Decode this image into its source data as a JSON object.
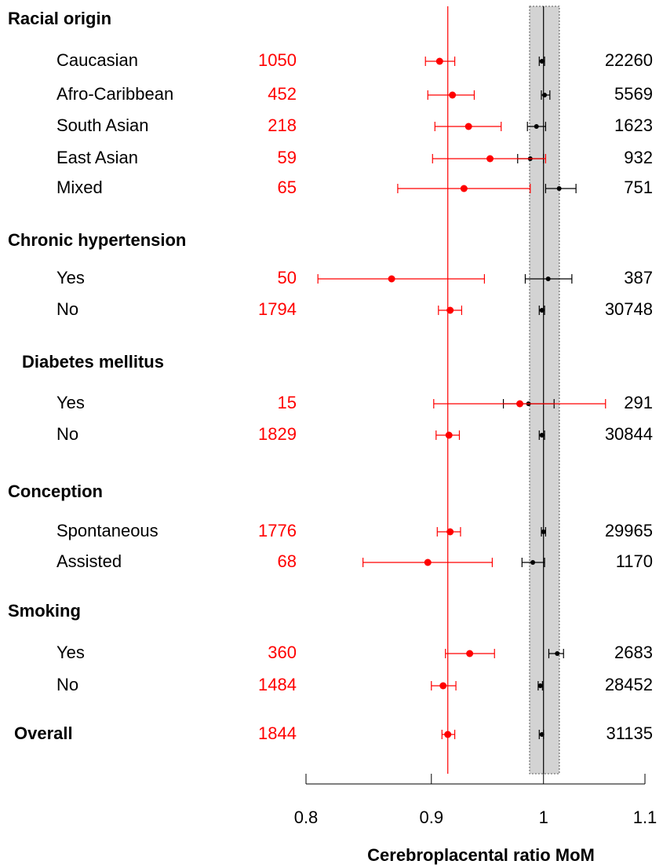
{
  "chart_data": {
    "type": "forest",
    "x_label": "Cerebroplacental ratio MoM",
    "log_scale": true,
    "xlim": [
      0.8,
      1.1
    ],
    "xticks": [
      0.8,
      0.9,
      1,
      1.1
    ],
    "case_color": "#ff0000",
    "ref_color": "#000000",
    "case_reference": 0.914,
    "ref_reference": 1,
    "ref_band": [
      0.987,
      1.015
    ],
    "groups": [
      {
        "label": "Racial origin",
        "rows": [
          {
            "label": "Caucasian",
            "n_case": 1050,
            "n_ref": 22260,
            "case": [
              0.907,
              0.895,
              0.92
            ],
            "ref": [
              0.9985,
              0.996,
              1.001
            ]
          },
          {
            "label": "Afro-Caribbean",
            "n_case": 452,
            "n_ref": 5569,
            "case": [
              0.918,
              0.897,
              0.937
            ],
            "ref": [
              1.001,
              0.998,
              1.006
            ]
          },
          {
            "label": "South Asian",
            "n_case": 218,
            "n_ref": 1623,
            "case": [
              0.932,
              0.903,
              0.961
            ],
            "ref": [
              0.9934,
              0.985,
              1.002
            ]
          },
          {
            "label": "East Asian",
            "n_case": 59,
            "n_ref": 932,
            "case": [
              0.951,
              0.901,
              1.002
            ],
            "ref": [
              0.9876,
              0.976,
              1.0
            ]
          },
          {
            "label": "Mixed",
            "n_case": 65,
            "n_ref": 751,
            "case": [
              0.928,
              0.872,
              0.9876
            ],
            "ref": [
              1.0148,
              1.002,
              1.031
            ]
          }
        ]
      },
      {
        "label": "Chronic hypertension",
        "rows": [
          {
            "label": "Yes",
            "n_case": 50,
            "n_ref": 387,
            "case": [
              0.867,
              0.809,
              0.946
            ],
            "ref": [
              1.0044,
              0.983,
              1.027
            ]
          },
          {
            "label": "No",
            "n_case": 1794,
            "n_ref": 30748,
            "case": [
              0.916,
              0.906,
              0.926
            ],
            "ref": [
              0.9985,
              0.996,
              1.001
            ]
          }
        ]
      },
      {
        "label": "Diabetes mellitus",
        "rows": [
          {
            "label": "Yes",
            "n_case": 15,
            "n_ref": 291,
            "case": [
              0.978,
              0.902,
              1.06
            ],
            "ref": [
              0.986,
              0.963,
              1.01
            ]
          },
          {
            "label": "No",
            "n_case": 1829,
            "n_ref": 30844,
            "case": [
              0.915,
              0.904,
              0.924
            ],
            "ref": [
              0.9985,
              0.996,
              1.001
            ]
          }
        ]
      },
      {
        "label": "Conception",
        "rows": [
          {
            "label": "Spontaneous",
            "n_case": 1776,
            "n_ref": 29965,
            "case": [
              0.916,
              0.905,
              0.925
            ],
            "ref": [
              1.0,
              0.998,
              1.002
            ]
          },
          {
            "label": "Assisted",
            "n_case": 68,
            "n_ref": 1170,
            "case": [
              0.897,
              0.844,
              0.953
            ],
            "ref": [
              0.99,
              0.98,
              1.001
            ]
          }
        ]
      },
      {
        "label": "Smoking",
        "rows": [
          {
            "label": "Yes",
            "n_case": 360,
            "n_ref": 2683,
            "case": [
              0.933,
              0.912,
              0.955
            ],
            "ref": [
              1.013,
              1.005,
              1.019
            ]
          },
          {
            "label": "No",
            "n_case": 1484,
            "n_ref": 28452,
            "case": [
              0.91,
              0.9,
              0.921
            ],
            "ref": [
              0.997,
              0.995,
              0.999
            ]
          }
        ]
      }
    ],
    "overall": {
      "label": "Overall",
      "n_case": 1844,
      "n_ref": 31135,
      "case": [
        0.914,
        0.909,
        0.92
      ],
      "ref": [
        0.9985,
        0.996,
        1.0
      ]
    }
  }
}
